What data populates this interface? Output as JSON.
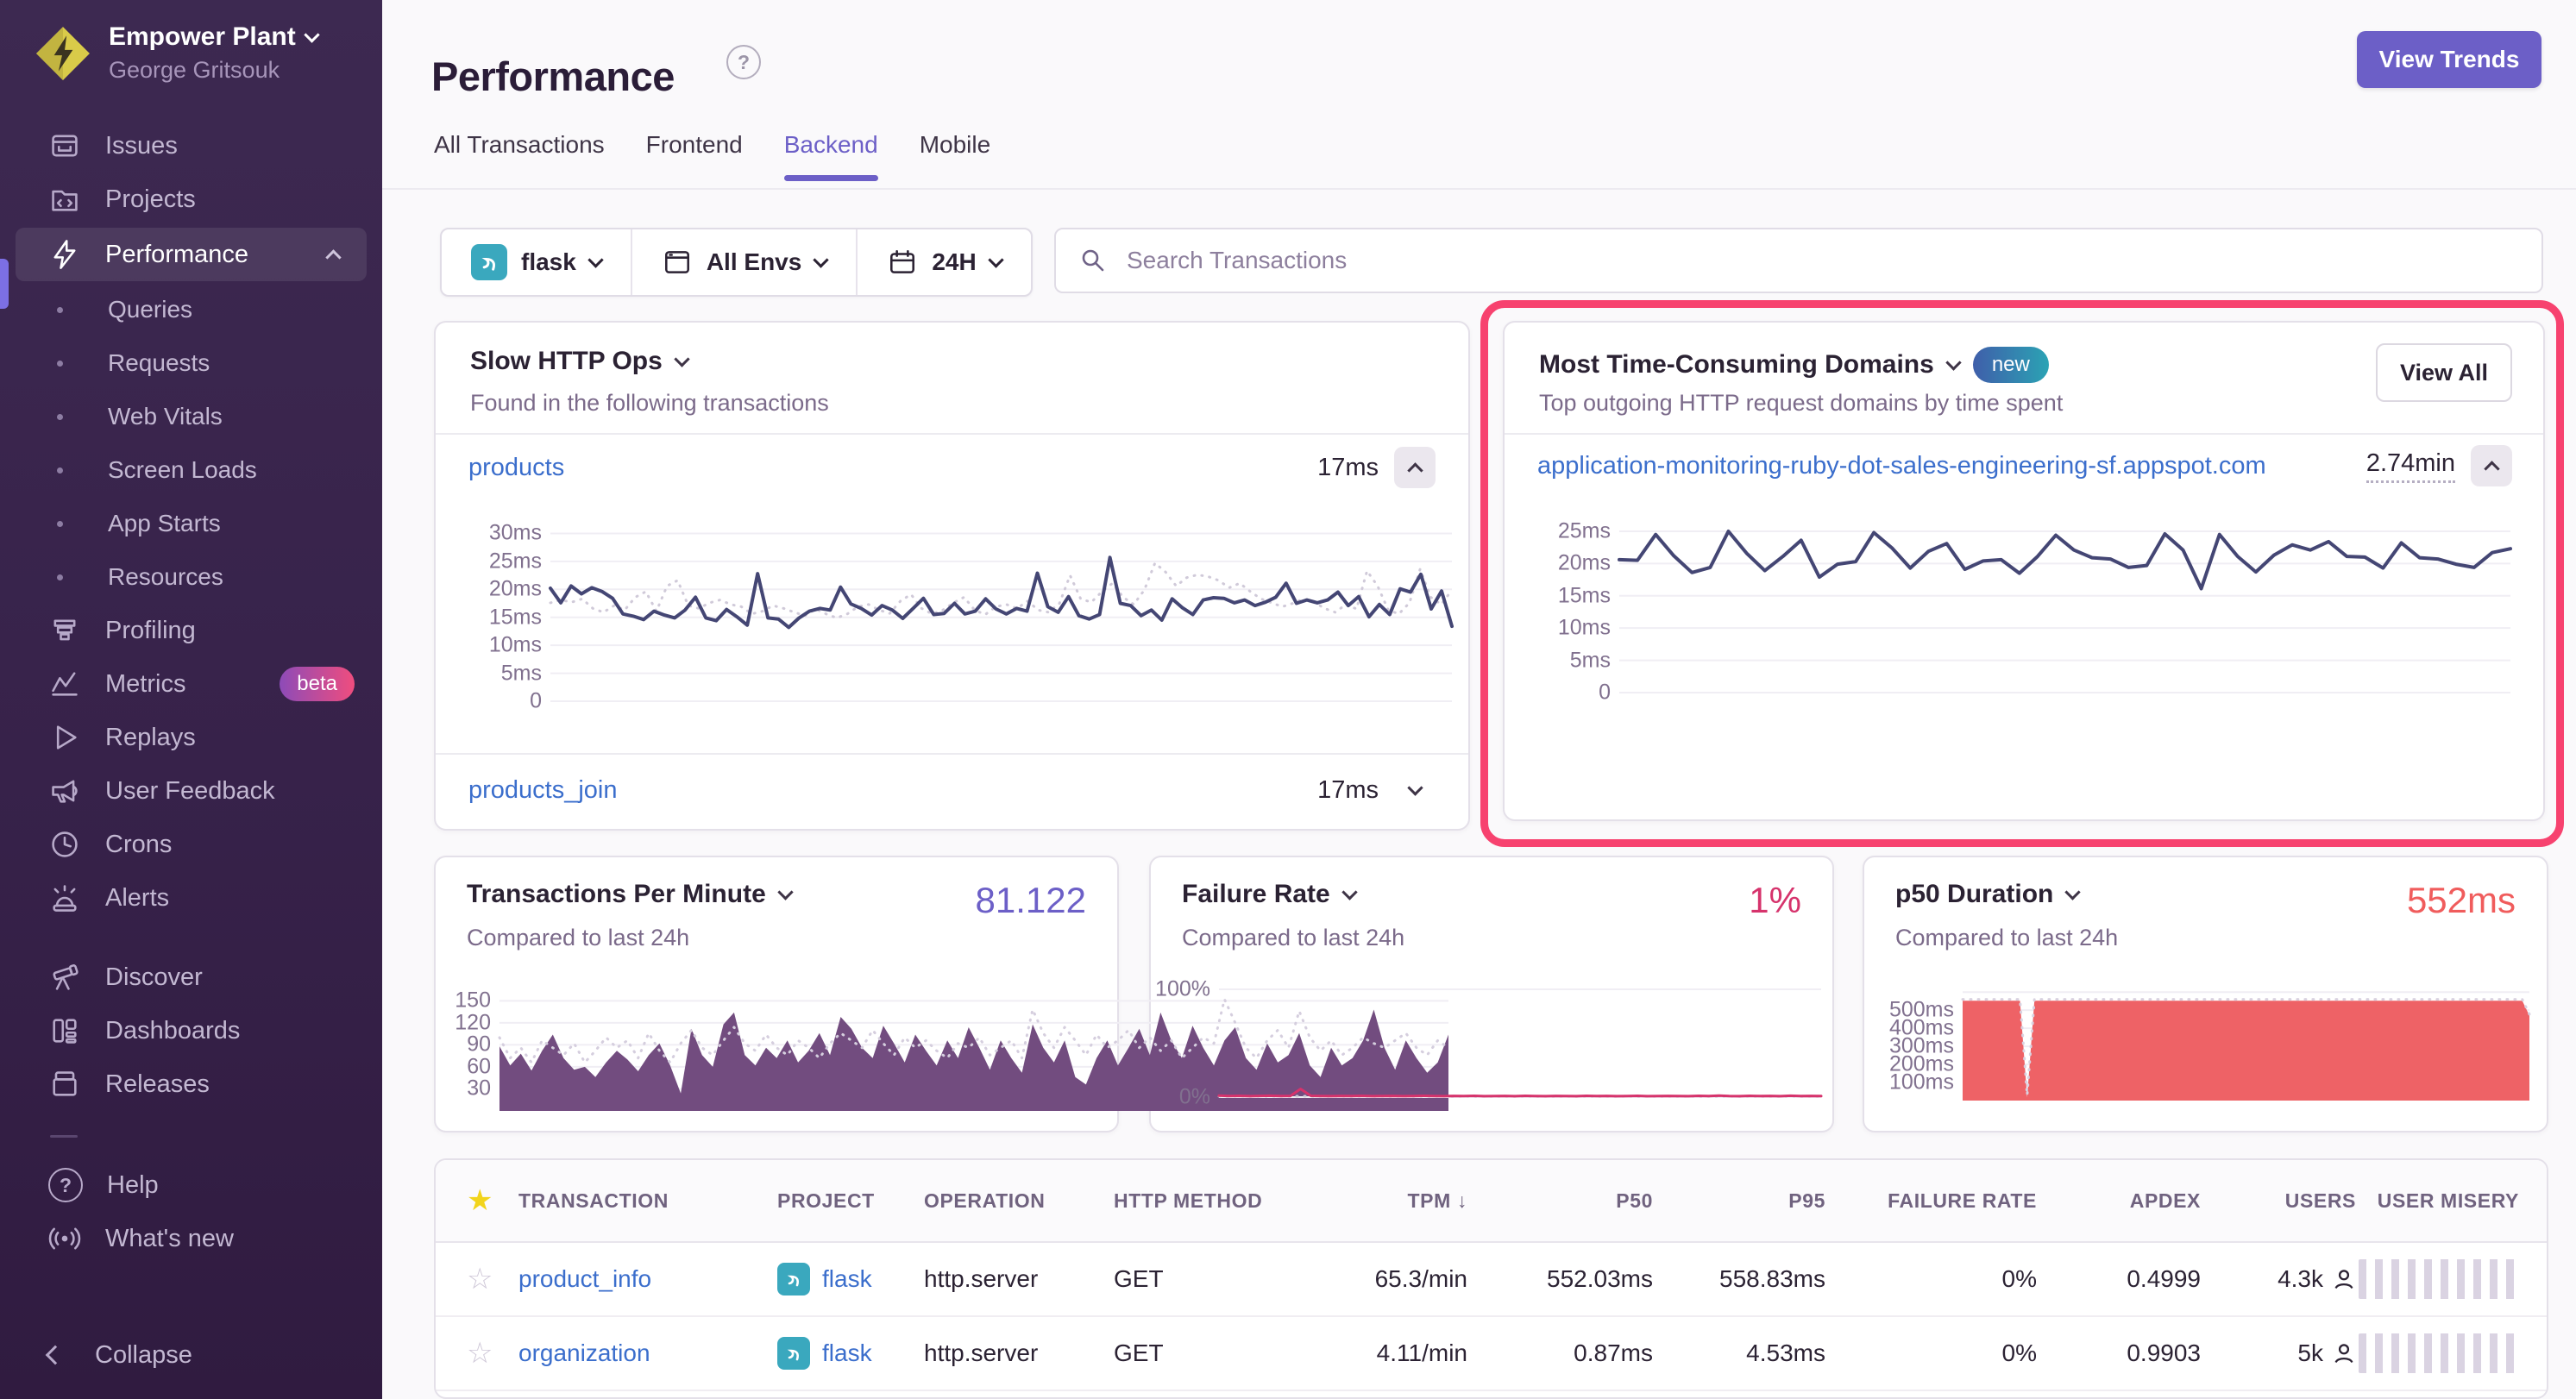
{
  "colors": {
    "accent_purple": "#6C5FC7",
    "highlight_pink": "#F7426F",
    "link_blue": "#3B6ECC",
    "chart_navy": "#444674",
    "tpm_purple": "#724C7F",
    "failure_pink": "#D6336C",
    "p50_red": "#EE6266",
    "star_yellow": "#F2D41C",
    "sidebar_bg": "#37224A"
  },
  "sidebar": {
    "org_name": "Empower Plant",
    "user_name": "George Gritsouk",
    "metrics_badge": "beta",
    "items": [
      "Issues",
      "Projects",
      "Performance",
      "Queries",
      "Requests",
      "Web Vitals",
      "Screen Loads",
      "App Starts",
      "Resources",
      "Profiling",
      "Metrics",
      "Replays",
      "User Feedback",
      "Crons",
      "Alerts",
      "Discover",
      "Dashboards",
      "Releases",
      "Help",
      "What's new",
      "Collapse"
    ]
  },
  "header": {
    "title": "Performance",
    "view_trends_label": "View Trends",
    "tabs": [
      "All Transactions",
      "Frontend",
      "Backend",
      "Mobile"
    ],
    "active_tab": "Backend"
  },
  "filters": {
    "project": "flask",
    "environment": "All Envs",
    "date_range": "24H",
    "search_placeholder": "Search Transactions"
  },
  "slow_http_ops": {
    "title": "Slow HTTP Ops",
    "subtitle": "Found in the following transactions",
    "rows": [
      {
        "name": "products",
        "value": "17ms"
      },
      {
        "name": "products_join",
        "value": "17ms"
      }
    ]
  },
  "domains": {
    "title": "Most Time-Consuming Domains",
    "badge": "new",
    "view_all_label": "View All",
    "subtitle": "Top outgoing HTTP request domains by time spent",
    "rows": [
      {
        "name": "application-monitoring-ruby-dot-sales-engineering-sf.appspot.com",
        "value": "2.74min"
      }
    ]
  },
  "kpis": [
    {
      "title": "Transactions Per Minute",
      "subtitle": "Compared to last 24h",
      "value": "81.122"
    },
    {
      "title": "Failure Rate",
      "subtitle": "Compared to last 24h",
      "value": "1%"
    },
    {
      "title": "p50 Duration",
      "subtitle": "Compared to last 24h",
      "value": "552ms"
    }
  ],
  "table": {
    "headers": {
      "transaction": "TRANSACTION",
      "project": "PROJECT",
      "operation": "OPERATION",
      "http_method": "HTTP METHOD",
      "tpm": "TPM",
      "sort_arrow": "↓",
      "p50": "P50",
      "p95": "P95",
      "failure_rate": "FAILURE RATE",
      "apdex": "APDEX",
      "users": "USERS",
      "user_misery": "USER MISERY"
    },
    "rows": [
      {
        "transaction": "product_info",
        "project": "flask",
        "operation": "http.server",
        "http_method": "GET",
        "tpm": "65.3/min",
        "p50": "552.03ms",
        "p95": "558.83ms",
        "failure_rate": "0%",
        "apdex": "0.4999",
        "users": "4.3k"
      },
      {
        "transaction": "organization",
        "project": "flask",
        "operation": "http.server",
        "http_method": "GET",
        "tpm": "4.11/min",
        "p50": "0.87ms",
        "p95": "4.53ms",
        "failure_rate": "0%",
        "apdex": "0.9903",
        "users": "5k"
      }
    ]
  },
  "chart_data": {
    "slow_http_ops": {
      "type": "line",
      "ylim": [
        0,
        33
      ],
      "grid": true,
      "ticks": [
        {
          "v": 30,
          "label": "30ms"
        },
        {
          "v": 25,
          "label": "25ms"
        },
        {
          "v": 20,
          "label": "20ms"
        },
        {
          "v": 15,
          "label": "15ms"
        },
        {
          "v": 10,
          "label": "10ms"
        },
        {
          "v": 5,
          "label": "5ms"
        },
        {
          "v": 0,
          "label": "0"
        }
      ],
      "series": [
        {
          "name": "previous 24h",
          "type": "line",
          "color": "#d0cad9",
          "width": 3,
          "dash": "1 8",
          "values": [
            17.6,
            18.1,
            17.7,
            18.3,
            16.6,
            15.9,
            17.1,
            16.3,
            18.6,
            19.6,
            16.1,
            20.6,
            21.6,
            17.1,
            16.6,
            17.6,
            18.1,
            17.3,
            16.9,
            15.6,
            16.1,
            17.1,
            16.6,
            15.9,
            15.3,
            16.5,
            15.6,
            14.9,
            15.6,
            16.9,
            17.3,
            16.3,
            15.7,
            17.9,
            19.1,
            16.6,
            15.6,
            16.3,
            17.6,
            18.6,
            16.3,
            15.5,
            16.9,
            17.3,
            16.6,
            17.9,
            16.3,
            15.9,
            17.5,
            22.5,
            18.3,
            17.7,
            19.6,
            21.1,
            18.6,
            17.3,
            19.9,
            24.7,
            23.1,
            20.6,
            22.1,
            22.6,
            22.3,
            21.6,
            20.3,
            21.1,
            19.6,
            18.3,
            17.6,
            16.9,
            17.5,
            18.3,
            17.7,
            16.6,
            15.9,
            17.3,
            16.5,
            23.3,
            20.6,
            16.3,
            15.6,
            17.6,
            23.6,
            18.6,
            17.3,
            19.9
          ]
        },
        {
          "name": "current",
          "type": "line",
          "color": "#444674",
          "width": 4,
          "values": [
            20.2,
            17.6,
            20.6,
            19.2,
            20.3,
            19.6,
            18.4,
            15.6,
            15.2,
            14.6,
            16.1,
            15.4,
            14.9,
            16.3,
            18.6,
            14.9,
            14.4,
            16.4,
            15.1,
            13.6,
            22.8,
            14.9,
            14.7,
            13.2,
            14.9,
            16.1,
            16.6,
            16.3,
            20.4,
            17.4,
            16.6,
            15.4,
            17.1,
            16.3,
            14.8,
            16.6,
            18.4,
            15.5,
            15.7,
            17.5,
            15.6,
            16.1,
            18.3,
            16.5,
            15.6,
            16.6,
            16.1,
            22.9,
            16.9,
            15.9,
            18.7,
            15.3,
            14.7,
            15.5,
            25.7,
            17.5,
            17.1,
            15.3,
            16.3,
            14.5,
            18.3,
            16.7,
            15.5,
            18.1,
            18.5,
            18.4,
            17.6,
            18.1,
            17.1,
            17.7,
            18.6,
            21.1,
            17.5,
            18.1,
            17.6,
            18.1,
            19.5,
            17.1,
            18.7,
            15.1,
            17.3,
            15.5,
            20.1,
            19.5,
            22.7,
            16.5,
            19.7,
            13.4
          ]
        }
      ]
    },
    "domains": {
      "type": "line",
      "ylim": [
        0,
        27
      ],
      "grid": true,
      "ticks": [
        {
          "v": 25,
          "label": "25ms"
        },
        {
          "v": 20,
          "label": "20ms"
        },
        {
          "v": 15,
          "label": "15ms"
        },
        {
          "v": 10,
          "label": "10ms"
        },
        {
          "v": 5,
          "label": "5ms"
        },
        {
          "v": 0,
          "label": "0"
        }
      ],
      "series": [
        {
          "name": "current",
          "type": "line",
          "color": "#444674",
          "width": 4,
          "values": [
            20.6,
            20.5,
            24.5,
            21.2,
            18.6,
            19.4,
            25.0,
            21.6,
            18.9,
            21.1,
            23.6,
            17.9,
            19.9,
            20.3,
            24.8,
            22.4,
            19.3,
            21.9,
            23.1,
            19.1,
            20.4,
            20.6,
            18.5,
            21.1,
            24.4,
            22.1,
            20.9,
            20.7,
            19.4,
            19.7,
            24.6,
            22.1,
            16.1,
            24.5,
            21.1,
            18.7,
            21.3,
            22.9,
            22.1,
            23.4,
            21.1,
            21.0,
            19.3,
            23.2,
            20.9,
            20.7,
            19.9,
            19.4,
            21.7,
            22.3
          ]
        }
      ]
    },
    "tpm": {
      "type": "area",
      "ylim": [
        0,
        168
      ],
      "grid": true,
      "ticks": [
        {
          "v": 150,
          "label": "150"
        },
        {
          "v": 120,
          "label": "120"
        },
        {
          "v": 90,
          "label": "90"
        },
        {
          "v": 60,
          "label": "60"
        },
        {
          "v": 30,
          "label": "30"
        }
      ],
      "series": [
        {
          "name": "current",
          "type": "area",
          "color": "#724c7f",
          "values": [
            88,
            62,
            78,
            55,
            82,
            104,
            72,
            56,
            60,
            46,
            66,
            82,
            70,
            54,
            76,
            92,
            62,
            24,
            112,
            76,
            60,
            118,
            134,
            76,
            62,
            86,
            72,
            96,
            66,
            82,
            106,
            76,
            128,
            112,
            86,
            72,
            116,
            92,
            66,
            104,
            82,
            62,
            96,
            72,
            114,
            86,
            56,
            96,
            72,
            52,
            118,
            86,
            66,
            96,
            46,
            36,
            72,
            96,
            62,
            86,
            112,
            76,
            134,
            96,
            72,
            116,
            86,
            62,
            96,
            114,
            72,
            56,
            92,
            66,
            76,
            106,
            62,
            46,
            86,
            62,
            72,
            96,
            138,
            86,
            56,
            96,
            72,
            52,
            66,
            104
          ]
        },
        {
          "name": "previous 24h",
          "type": "line",
          "color": "#d5cede",
          "width": 3,
          "dash": "1 8",
          "values": [
            100,
            72,
            86,
            66,
            96,
            86,
            76,
            92,
            66,
            82,
            100,
            86,
            96,
            72,
            106,
            82,
            66,
            92,
            110,
            86,
            76,
            96,
            114,
            92,
            82,
            104,
            86,
            76,
            96,
            86,
            72,
            92,
            106,
            96,
            86,
            110,
            92,
            76,
            100,
            86,
            96,
            82,
            72,
            92,
            86,
            100,
            76,
            86,
            96,
            72,
            138,
            106,
            86,
            114,
            96,
            76,
            104,
            86,
            96,
            110,
            86,
            100,
            82,
            96,
            72,
            86,
            100,
            92,
            152,
            120,
            86,
            72,
            96,
            110,
            86,
            136,
            100,
            82,
            96,
            76,
            86,
            100,
            92,
            86,
            96,
            106,
            86,
            76,
            96,
            86
          ]
        }
      ]
    },
    "failure_rate": {
      "type": "line",
      "ylim": [
        -8,
        112
      ],
      "grid": true,
      "ticks": [
        {
          "v": 100,
          "label": "100%"
        },
        {
          "v": 0,
          "label": "0%"
        }
      ],
      "series": [
        {
          "name": "previous 24h",
          "type": "line",
          "color": "#cfc9d6",
          "width": 3,
          "dash": "1 8",
          "values": [
            0.8,
            0.7,
            0.8,
            0.7,
            0.8,
            0.7,
            0.8,
            0.7,
            0.8,
            0.7,
            0.8,
            0.7,
            0.8,
            0.7,
            0.8,
            0.7,
            0.8,
            0.7,
            0.8,
            0.7,
            0.8,
            0.7,
            0.8,
            0.7,
            0.8,
            0.7,
            0.8,
            0.7,
            0.8,
            0.7,
            0.8,
            0.7,
            0.8,
            0.7,
            0.8,
            0.7,
            0.8,
            0.7,
            0.8,
            0.7,
            0.8,
            0.7,
            0.8,
            0.7,
            0.8,
            0.7,
            0.8,
            0.7,
            0.8,
            0.7,
            0.8,
            0.7,
            0.8,
            0.7,
            0.8,
            0.7,
            0.8,
            0.7,
            0.8,
            0.7
          ]
        },
        {
          "name": "current",
          "type": "line",
          "color": "#d6336c",
          "width": 3,
          "values": [
            1.4,
            1.0,
            1.2,
            0.9,
            1.1,
            1.3,
            1.0,
            1.1,
            7.6,
            1.2,
            1.0,
            0.9,
            1.1,
            1.0,
            1.2,
            0.9,
            1.0,
            1.1,
            0.9,
            1.0,
            1.2,
            1.0,
            0.9,
            1.1,
            1.0,
            1.2,
            0.9,
            1.0,
            1.1,
            0.9,
            1.2,
            1.0,
            0.9,
            1.1,
            1.0,
            0.9,
            1.2,
            1.0,
            1.1,
            0.9,
            1.0,
            1.2,
            0.9,
            1.0,
            1.1,
            1.0,
            0.9,
            1.2,
            1.0,
            1.4,
            1.0,
            0.9,
            1.2,
            1.0,
            1.1,
            0.9,
            1.3,
            1.0,
            1.1,
            1.0
          ]
        }
      ]
    },
    "p50_duration": {
      "type": "area",
      "ylim": [
        0,
        620
      ],
      "grid": true,
      "ticks": [
        {
          "v": 600,
          "label": ""
        },
        {
          "v": 500,
          "label": "500ms"
        },
        {
          "v": 400,
          "label": "400ms"
        },
        {
          "v": 300,
          "label": "300ms"
        },
        {
          "v": 200,
          "label": "200ms"
        },
        {
          "v": 100,
          "label": "100ms"
        }
      ],
      "series": [
        {
          "name": "current",
          "type": "area",
          "color": "#ee6266",
          "values": [
            552,
            552,
            552,
            552,
            552,
            552,
            552,
            552,
            552,
            18,
            552,
            552,
            552,
            552,
            552,
            552,
            552,
            552,
            552,
            552,
            552,
            552,
            552,
            552,
            552,
            552,
            552,
            552,
            552,
            552,
            552,
            552,
            552,
            552,
            552,
            552,
            552,
            552,
            552,
            552,
            552,
            552,
            552,
            552,
            552,
            552,
            552,
            552,
            552,
            552,
            552,
            552,
            552,
            552,
            552,
            552,
            552,
            552,
            552,
            552,
            552,
            552,
            552,
            552,
            552,
            552,
            552,
            552,
            552,
            552,
            552,
            552,
            552,
            552,
            552,
            552,
            552,
            552,
            552,
            470
          ]
        },
        {
          "name": "previous 24h",
          "type": "line",
          "color": "#d9d2e0",
          "width": 3,
          "dash": "1 8",
          "values": [
            560,
            560,
            560,
            560,
            560,
            560,
            560,
            560,
            560,
            30,
            560,
            560,
            560,
            560,
            560,
            560,
            560,
            560,
            560,
            560,
            560,
            560,
            560,
            560,
            560,
            560,
            560,
            560,
            560,
            560,
            560,
            560,
            560,
            560,
            560,
            560,
            560,
            560,
            560,
            560,
            560,
            560,
            560,
            560,
            560,
            560,
            560,
            560,
            560,
            560,
            560,
            560,
            560,
            560,
            560,
            560,
            560,
            560,
            560,
            560,
            560,
            560,
            560,
            560,
            560,
            560,
            560,
            560,
            560,
            560,
            560,
            560,
            560,
            560,
            560,
            560,
            560,
            560,
            560,
            478
          ]
        }
      ]
    }
  }
}
